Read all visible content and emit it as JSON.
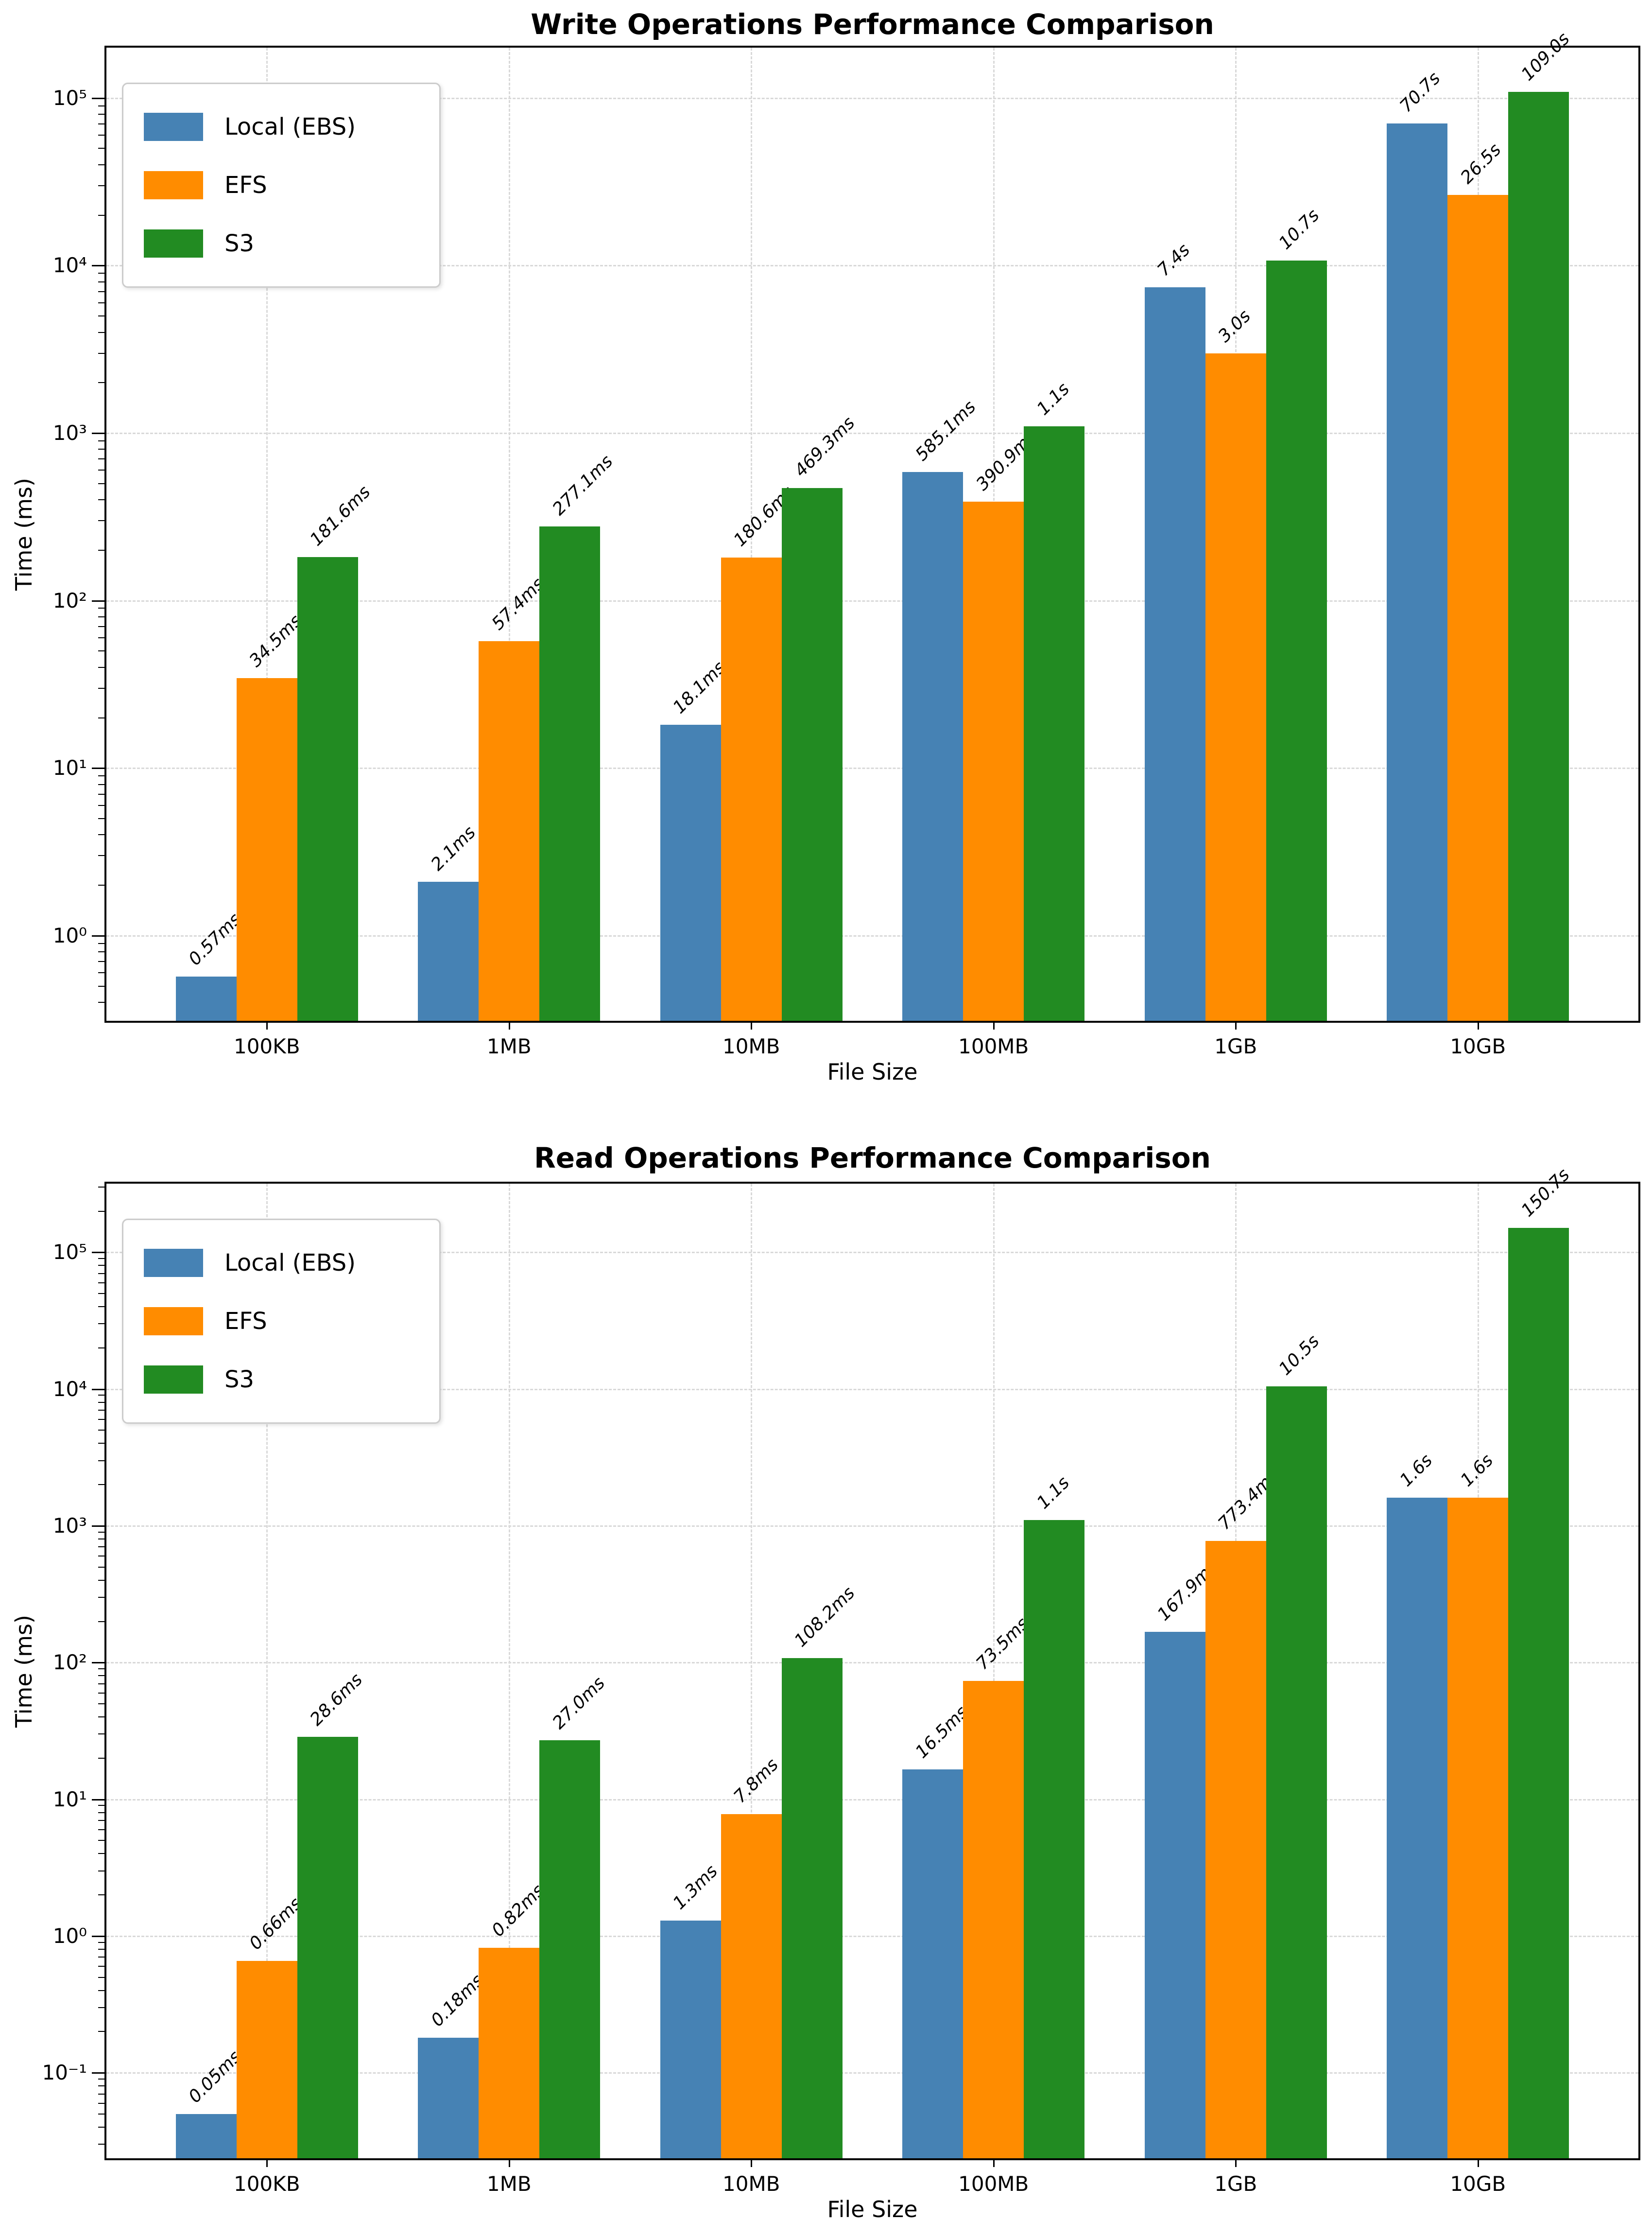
{
  "figure_background": "#ffffff",
  "chart_data": [
    {
      "type": "bar",
      "yscale": "log",
      "grid": true,
      "legend_position": "upper left",
      "title": "Write Operations Performance Comparison",
      "xlabel": "File Size",
      "ylabel": "Time (ms)",
      "categories": [
        "100KB",
        "1MB",
        "10MB",
        "100MB",
        "1GB",
        "10GB"
      ],
      "series": [
        {
          "name": "Local (EBS)",
          "color": "#4682B4",
          "values_ms": [
            0.57,
            2.1,
            18.1,
            585.1,
            7400,
            70700
          ],
          "labels": [
            "0.57ms",
            "2.1ms",
            "18.1ms",
            "585.1ms",
            "7.4s",
            "70.7s"
          ]
        },
        {
          "name": "EFS",
          "color": "#FF8C00",
          "values_ms": [
            34.5,
            57.4,
            180.6,
            390.9,
            3000,
            26500
          ],
          "labels": [
            "34.5ms",
            "57.4ms",
            "180.6ms",
            "390.9ms",
            "3.0s",
            "26.5s"
          ]
        },
        {
          "name": "S3",
          "color": "#228B22",
          "values_ms": [
            181.6,
            277.1,
            469.3,
            1100,
            10700,
            109000
          ],
          "labels": [
            "181.6ms",
            "277.1ms",
            "469.3ms",
            "1.1s",
            "10.7s",
            "109.0s"
          ]
        }
      ],
      "y_ticks": [
        {
          "exp": 0,
          "label": "10⁰"
        },
        {
          "exp": 1,
          "label": "10¹"
        },
        {
          "exp": 2,
          "label": "10²"
        },
        {
          "exp": 3,
          "label": "10³"
        },
        {
          "exp": 4,
          "label": "10⁴"
        },
        {
          "exp": 5,
          "label": "10⁵"
        }
      ],
      "ylim_log10": [
        -0.508,
        5.301
      ]
    },
    {
      "type": "bar",
      "yscale": "log",
      "grid": true,
      "legend_position": "upper left",
      "title": "Read Operations Performance Comparison",
      "xlabel": "File Size",
      "ylabel": "Time (ms)",
      "categories": [
        "100KB",
        "1MB",
        "10MB",
        "100MB",
        "1GB",
        "10GB"
      ],
      "series": [
        {
          "name": "Local (EBS)",
          "color": "#4682B4",
          "values_ms": [
            0.05,
            0.18,
            1.3,
            16.5,
            167.9,
            1600
          ],
          "labels": [
            "0.05ms",
            "0.18ms",
            "1.3ms",
            "16.5ms",
            "167.9ms",
            "1.6s"
          ]
        },
        {
          "name": "EFS",
          "color": "#FF8C00",
          "values_ms": [
            0.66,
            0.82,
            7.8,
            73.5,
            773.4,
            1600
          ],
          "labels": [
            "0.66ms",
            "0.82ms",
            "7.8ms",
            "73.5ms",
            "773.4ms",
            "1.6s"
          ]
        },
        {
          "name": "S3",
          "color": "#228B22",
          "values_ms": [
            28.6,
            27.0,
            108.2,
            1100,
            10500,
            150700
          ],
          "labels": [
            "28.6ms",
            "27.0ms",
            "108.2ms",
            "1.1s",
            "10.5s",
            "150.7s"
          ]
        }
      ],
      "y_ticks": [
        {
          "exp": -1,
          "label": "10⁻¹"
        },
        {
          "exp": 0,
          "label": "10⁰"
        },
        {
          "exp": 1,
          "label": "10¹"
        },
        {
          "exp": 2,
          "label": "10²"
        },
        {
          "exp": 3,
          "label": "10³"
        },
        {
          "exp": 4,
          "label": "10⁴"
        },
        {
          "exp": 5,
          "label": "10⁵"
        }
      ],
      "ylim_log10": [
        -1.625,
        5.502
      ]
    }
  ]
}
